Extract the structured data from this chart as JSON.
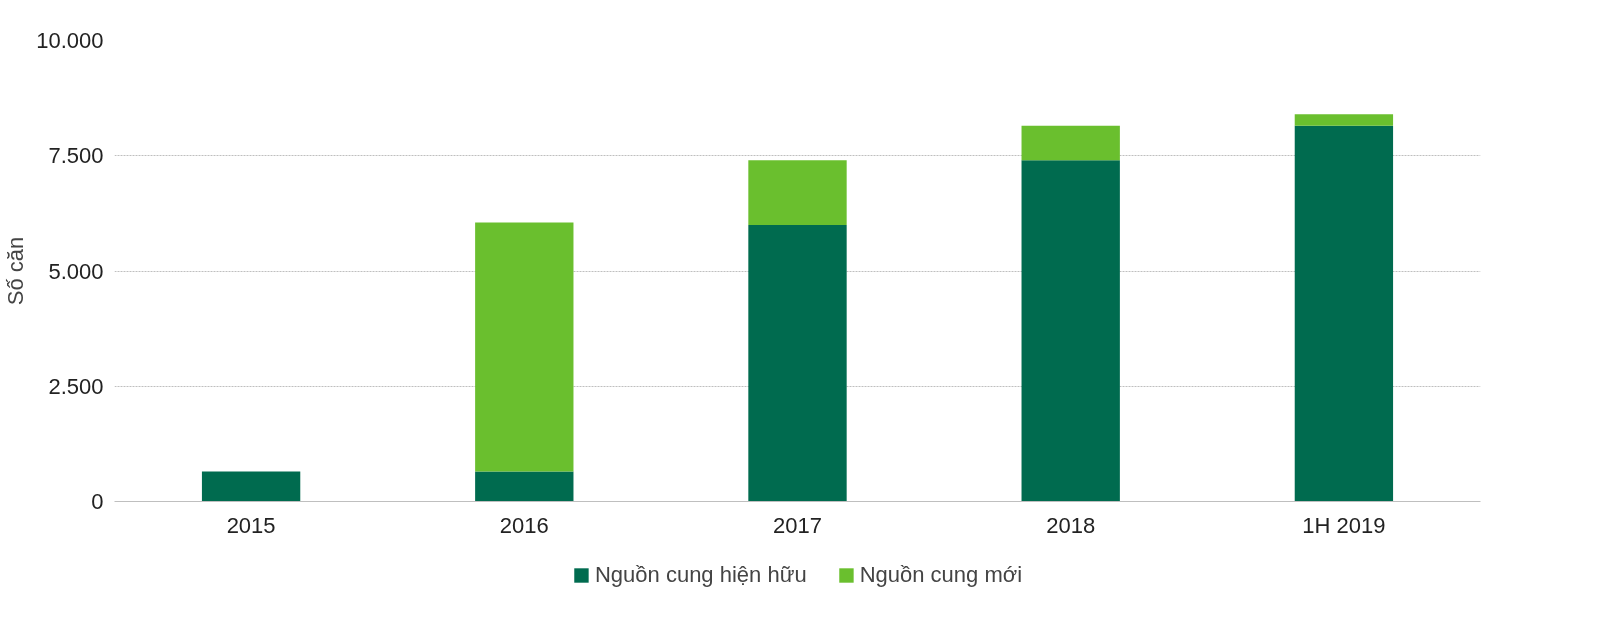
{
  "chart_data": {
    "type": "bar",
    "stacked": true,
    "ylabel": "Số căn",
    "categories": [
      "2015",
      "2016",
      "2017",
      "2018",
      "1H 2019"
    ],
    "series": [
      {
        "name": "Nguồn cung hiện hữu",
        "color": "#006b4f",
        "values": [
          650,
          650,
          6000,
          7400,
          8150
        ]
      },
      {
        "name": "Nguồn cung mới",
        "color": "#6abf2e",
        "values": [
          0,
          5400,
          1400,
          750,
          250
        ]
      }
    ],
    "ylim": [
      0,
      10000
    ],
    "yticks": [
      {
        "value": 0,
        "label": "0"
      },
      {
        "value": 2500,
        "label": "2.500"
      },
      {
        "value": 5000,
        "label": "5.000"
      },
      {
        "value": 7500,
        "label": "7.500"
      },
      {
        "value": 10000,
        "label": "10.000"
      }
    ],
    "grid": "y",
    "legend": "bottom"
  }
}
